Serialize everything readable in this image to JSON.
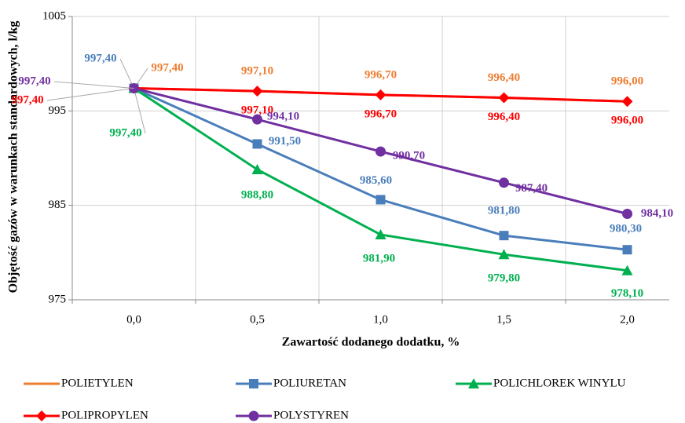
{
  "chart_data": {
    "type": "line",
    "x_label": "Zawartość dodanego dodatku, %",
    "y_label": "Objętość gazów w warunkach standardowych, l/kg",
    "categories": [
      "0,0",
      "0,5",
      "1,0",
      "1,5",
      "2,0"
    ],
    "ylim": [
      975,
      1005
    ],
    "yticks": [
      975,
      985,
      995,
      1005
    ],
    "grid": true,
    "legend": "bottom",
    "series": [
      {
        "name": "POLIETYLEN",
        "color": "#ed7d31",
        "marker": "none",
        "values": [
          997.4,
          997.1,
          996.7,
          996.4,
          996.0
        ],
        "value_labels": [
          "997,40",
          "997,10",
          "996,70",
          "996,40",
          "996,00"
        ]
      },
      {
        "name": "POLIURETAN",
        "color": "#4a7ebb",
        "marker": "square",
        "values": [
          997.4,
          991.5,
          985.6,
          981.8,
          980.3
        ],
        "value_labels": [
          "997,40",
          "991,50",
          "985,60",
          "981,80",
          "980,30"
        ]
      },
      {
        "name": "POLICHLOREK WINYLU",
        "color": "#00b050",
        "marker": "triangle",
        "values": [
          997.4,
          988.8,
          981.9,
          979.8,
          978.1
        ],
        "value_labels": [
          "997,40",
          "988,80",
          "981,90",
          "979,80",
          "978,10"
        ]
      },
      {
        "name": "POLIPROPYLEN",
        "color": "#ff0000",
        "marker": "diamond",
        "values": [
          997.4,
          997.1,
          996.7,
          996.4,
          996.0
        ],
        "value_labels": [
          "997,40",
          "997,10",
          "996,70",
          "996,40",
          "996,00"
        ]
      },
      {
        "name": "POLYSTYREN",
        "color": "#7030a0",
        "marker": "circle",
        "values": [
          997.4,
          994.1,
          990.7,
          987.4,
          984.1
        ],
        "value_labels": [
          "997,40",
          "994,10",
          "990,70",
          "987,40",
          "984,10"
        ]
      }
    ]
  }
}
